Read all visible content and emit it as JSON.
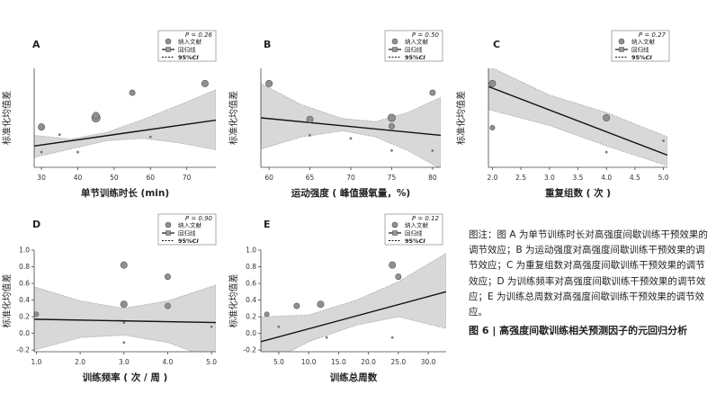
{
  "colors": {
    "ci_band": "#d8d8d8",
    "regression_line": "#111111",
    "point_fill": "#909090",
    "point_stroke": "#555555",
    "axis": "#444444"
  },
  "legend": {
    "points_label": "纳入文献",
    "line_label": "回归线",
    "ci_label_prefix": "95%",
    "ci_label_italic": "CI"
  },
  "caption": {
    "note": "图注：图 A 为单节训练时长对高强度间歇训练干预效果的调节效应；B 为运动强度对高强度间歇训练干预效果的调节效应；C 为重复组数对高强度间歇训练干预效果的调节效应；D 为训练频率对高强度间歇训练干预效果的调节效应；E 为训练总周数对高强度间歇训练干预效果的调节效应。",
    "title": "图 6 | 高强度间歇训练相关预测因子的元回归分析"
  },
  "chart_data": [
    {
      "panel": "A",
      "type": "scatter",
      "p_label": "P = 0.26",
      "xlabel": "单节训练时长 (min)",
      "ylabel": "标准化均值差",
      "xlim": [
        28,
        78
      ],
      "ylim": [
        -0.3,
        1.0
      ],
      "xticks": [
        30,
        40,
        50,
        60,
        70
      ],
      "yticks": [],
      "points": [
        {
          "x": 30,
          "y": 0.23,
          "w": 2
        },
        {
          "x": 30,
          "y": -0.1,
          "w": 0.5
        },
        {
          "x": 35,
          "y": 0.13,
          "w": 0.5
        },
        {
          "x": 40,
          "y": -0.1,
          "w": 0.5
        },
        {
          "x": 45,
          "y": 0.35,
          "w": 3
        },
        {
          "x": 45,
          "y": 0.38,
          "w": 2
        },
        {
          "x": 55,
          "y": 0.68,
          "w": 1.5
        },
        {
          "x": 60,
          "y": 0.1,
          "w": 0.5
        },
        {
          "x": 75,
          "y": 0.8,
          "w": 2
        }
      ],
      "line": [
        [
          28,
          -0.02
        ],
        [
          78,
          0.32
        ]
      ],
      "ci_upper": [
        [
          28,
          0.12
        ],
        [
          38,
          0.07
        ],
        [
          48,
          0.16
        ],
        [
          58,
          0.33
        ],
        [
          68,
          0.52
        ],
        [
          78,
          0.72
        ]
      ],
      "ci_lower": [
        [
          28,
          -0.17
        ],
        [
          38,
          -0.06
        ],
        [
          48,
          0.05
        ],
        [
          58,
          0.08
        ],
        [
          68,
          0.02
        ],
        [
          78,
          -0.07
        ]
      ]
    },
    {
      "panel": "B",
      "type": "scatter",
      "p_label": "P = 0.50",
      "xlabel": "运动强度 ( 峰值摄氧量，%)",
      "ylabel": "标准化均值差",
      "xlim": [
        59,
        81
      ],
      "ylim": [
        -0.3,
        1.0
      ],
      "xticks": [
        60,
        65,
        70,
        75,
        80
      ],
      "yticks": [],
      "points": [
        {
          "x": 60,
          "y": 0.8,
          "w": 2
        },
        {
          "x": 65,
          "y": 0.33,
          "w": 2
        },
        {
          "x": 65,
          "y": 0.12,
          "w": 0.5
        },
        {
          "x": 70,
          "y": 0.08,
          "w": 0.5
        },
        {
          "x": 75,
          "y": 0.35,
          "w": 2.5
        },
        {
          "x": 75,
          "y": 0.24,
          "w": 1.5
        },
        {
          "x": 75,
          "y": -0.08,
          "w": 0.5
        },
        {
          "x": 80,
          "y": 0.68,
          "w": 1.5
        },
        {
          "x": 80,
          "y": -0.08,
          "w": 0.5
        }
      ],
      "line": [
        [
          59,
          0.35
        ],
        [
          81,
          0.12
        ]
      ],
      "ci_upper": [
        [
          59,
          0.8
        ],
        [
          64,
          0.52
        ],
        [
          69,
          0.34
        ],
        [
          73,
          0.3
        ],
        [
          77,
          0.42
        ],
        [
          81,
          0.62
        ]
      ],
      "ci_lower": [
        [
          59,
          -0.06
        ],
        [
          64,
          0.1
        ],
        [
          69,
          0.18
        ],
        [
          73,
          0.1
        ],
        [
          77,
          -0.08
        ],
        [
          81,
          -0.32
        ]
      ]
    },
    {
      "panel": "C",
      "type": "scatter",
      "p_label": "P = 0.27",
      "xlabel": "重复组数 ( 次 )",
      "ylabel": "标准化均值差",
      "xlim": [
        1.93,
        5.07
      ],
      "ylim": [
        -0.3,
        1.0
      ],
      "xticks": [
        2.0,
        2.5,
        3.0,
        3.5,
        4.0,
        4.5,
        5.0
      ],
      "yticks": [],
      "tick_decimals": 1,
      "points": [
        {
          "x": 2.0,
          "y": 0.8,
          "w": 2
        },
        {
          "x": 2.0,
          "y": 0.22,
          "w": 1
        },
        {
          "x": 4.0,
          "y": 0.35,
          "w": 2
        },
        {
          "x": 4.0,
          "y": -0.1,
          "w": 0.5
        },
        {
          "x": 5.0,
          "y": 0.05,
          "w": 0.5
        }
      ],
      "line": [
        [
          1.93,
          0.76
        ],
        [
          5.07,
          -0.14
        ]
      ],
      "ci_upper": [
        [
          1.93,
          1.03
        ],
        [
          3.0,
          0.65
        ],
        [
          4.0,
          0.42
        ],
        [
          5.07,
          0.1
        ]
      ],
      "ci_lower": [
        [
          1.93,
          0.46
        ],
        [
          3.0,
          0.25
        ],
        [
          4.0,
          -0.02
        ],
        [
          5.07,
          -0.28
        ]
      ]
    },
    {
      "panel": "D",
      "type": "scatter",
      "p_label": "P = 0.90",
      "xlabel": "训练频率 ( 次 / 周 )",
      "ylabel": "标准化均值差",
      "xlim": [
        0.95,
        5.1
      ],
      "ylim": [
        -0.22,
        1.0
      ],
      "xticks": [
        1,
        2,
        3,
        4,
        5
      ],
      "yticks": [
        -0.2,
        0.0,
        0.2,
        0.4,
        0.6,
        0.8,
        1.0
      ],
      "tick_decimals": 1,
      "points": [
        {
          "x": 1,
          "y": 0.23,
          "w": 1
        },
        {
          "x": 3,
          "y": 0.82,
          "w": 2
        },
        {
          "x": 3,
          "y": 0.35,
          "w": 2
        },
        {
          "x": 3,
          "y": 0.13,
          "w": 0.5
        },
        {
          "x": 3,
          "y": -0.11,
          "w": 0.5
        },
        {
          "x": 4,
          "y": 0.68,
          "w": 1.5
        },
        {
          "x": 4,
          "y": 0.33,
          "w": 1.5
        },
        {
          "x": 5,
          "y": 0.08,
          "w": 0.5
        }
      ],
      "line": [
        [
          0.95,
          0.17
        ],
        [
          5.1,
          0.13
        ]
      ],
      "ci_upper": [
        [
          0.95,
          0.56
        ],
        [
          2.0,
          0.39
        ],
        [
          3.0,
          0.3
        ],
        [
          4.0,
          0.39
        ],
        [
          5.1,
          0.58
        ]
      ],
      "ci_lower": [
        [
          0.95,
          -0.2
        ],
        [
          2.0,
          -0.05
        ],
        [
          3.0,
          -0.02
        ],
        [
          4.0,
          -0.11
        ],
        [
          5.1,
          -0.32
        ]
      ]
    },
    {
      "panel": "E",
      "type": "scatter",
      "p_label": "P = 0.12",
      "xlabel": "训练总周数",
      "ylabel": "标准化均值差",
      "xlim": [
        2,
        33
      ],
      "ylim": [
        -0.22,
        1.0
      ],
      "xticks": [
        5,
        10,
        15,
        20,
        25,
        30
      ],
      "yticks": [
        -0.2,
        0.0,
        0.2,
        0.4,
        0.6,
        0.8,
        1.0
      ],
      "tick_decimals": 1,
      "points": [
        {
          "x": 3,
          "y": 0.23,
          "w": 1
        },
        {
          "x": 5,
          "y": 0.08,
          "w": 0.5
        },
        {
          "x": 8,
          "y": 0.33,
          "w": 1.5
        },
        {
          "x": 12,
          "y": 0.35,
          "w": 2
        },
        {
          "x": 13,
          "y": -0.05,
          "w": 0.5
        },
        {
          "x": 24,
          "y": 0.82,
          "w": 2
        },
        {
          "x": 24,
          "y": -0.05,
          "w": 0.5
        },
        {
          "x": 25,
          "y": 0.68,
          "w": 1.5
        }
      ],
      "line": [
        [
          2,
          -0.1
        ],
        [
          33,
          0.5
        ]
      ],
      "ci_upper": [
        [
          2,
          0.2
        ],
        [
          10,
          0.22
        ],
        [
          18,
          0.4
        ],
        [
          25,
          0.62
        ],
        [
          33,
          0.96
        ]
      ],
      "ci_lower": [
        [
          2,
          -0.4
        ],
        [
          10,
          -0.1
        ],
        [
          18,
          0.1
        ],
        [
          25,
          0.2
        ],
        [
          33,
          0.06
        ]
      ]
    }
  ]
}
